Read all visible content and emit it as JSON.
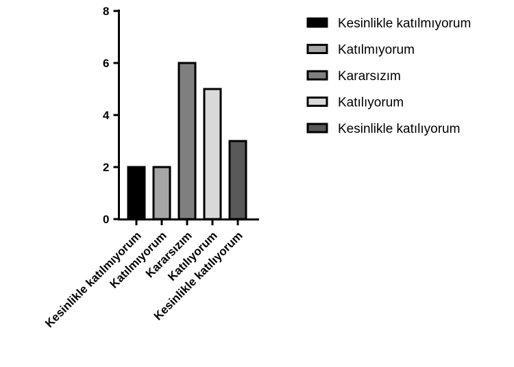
{
  "chart_data": {
    "type": "bar",
    "categories": [
      "Kesinlikle katılmıyorum",
      "Katılmıyorum",
      "Kararsızım",
      "Katılıyorum",
      "Kesinlikle katılıyorum"
    ],
    "values": [
      2,
      2,
      6,
      5,
      3
    ],
    "colors": [
      "#000000",
      "#a6a6a6",
      "#7f7f7f",
      "#d9d9d9",
      "#595959"
    ],
    "bar_outline_color": "#000000",
    "title": "",
    "xlabel": "",
    "ylabel": "",
    "ylim": [
      0,
      8
    ],
    "yticks": [
      "0",
      "2",
      "4",
      "6",
      "8"
    ],
    "grid": false,
    "legend": {
      "placement": "top-right",
      "entries": [
        "Kesinlikle katılmıyorum",
        "Katılmıyorum",
        "Kararsızım",
        "Katılıyorum",
        "Kesinlikle katılıyorum"
      ]
    }
  }
}
